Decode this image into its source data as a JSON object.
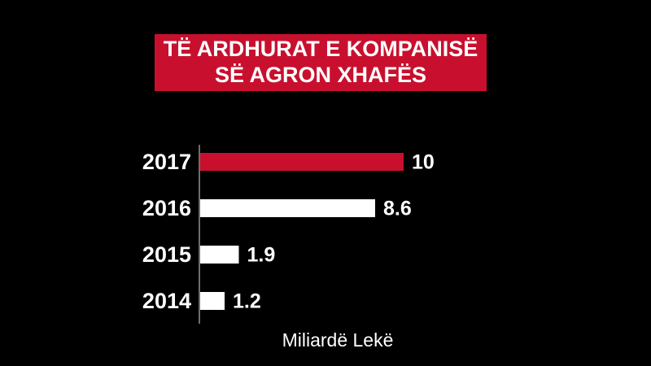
{
  "chart_data": {
    "type": "bar",
    "orientation": "horizontal",
    "title": [
      "TË ARDHURAT E KOMPANISË",
      "SË AGRON XHAFËS"
    ],
    "categories": [
      "2017",
      "2016",
      "2015",
      "2014"
    ],
    "values": [
      10,
      8.6,
      1.9,
      1.2
    ],
    "colors": [
      "#c8102e",
      "#ffffff",
      "#ffffff",
      "#ffffff"
    ],
    "xlabel": "Miliardë Lekë",
    "xlim": [
      0,
      10
    ]
  }
}
